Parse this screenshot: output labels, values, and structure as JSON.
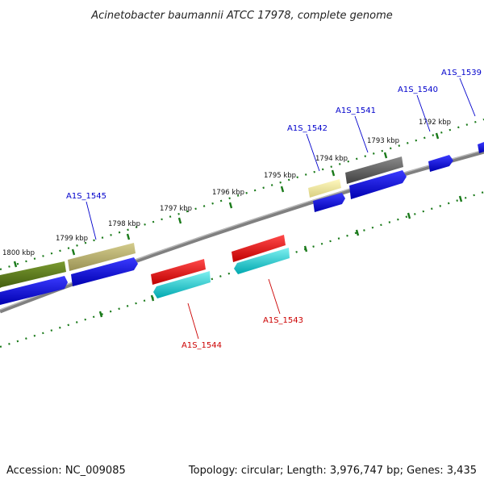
{
  "title": "Acinetobacter baumannii ATCC 17978, complete genome",
  "footer": {
    "accession": "Accession: NC_009085",
    "summary": "Topology: circular; Length: 3,976,747 bp; Genes: 3,435"
  },
  "kbp_labels": [
    "1800 kbp",
    "1799 kbp",
    "1798 kbp",
    "1797 kbp",
    "1796 kbp",
    "1795 kbp",
    "1794 kbp",
    "1793 kbp",
    "1792 kbp"
  ],
  "gene_labels": {
    "forward": [
      "A1S_1545",
      "A1S_1542",
      "A1S_1541",
      "A1S_1540",
      "A1S_1539"
    ],
    "reverse": [
      "A1S_1544",
      "A1S_1543"
    ]
  },
  "colors": {
    "forward_label": "#0000cc",
    "reverse_label": "#cc0000",
    "tick": "#1a7a1a",
    "backbone": "#808080",
    "cds_forward": "#0000ee",
    "cds_reverse": "#00c0c8",
    "gene_red": "#ee0000",
    "olive": "#5a7a1a",
    "khaki": "#b8b070",
    "pale_yellow": "#f0e8a0",
    "dark_gray": "#606060"
  }
}
